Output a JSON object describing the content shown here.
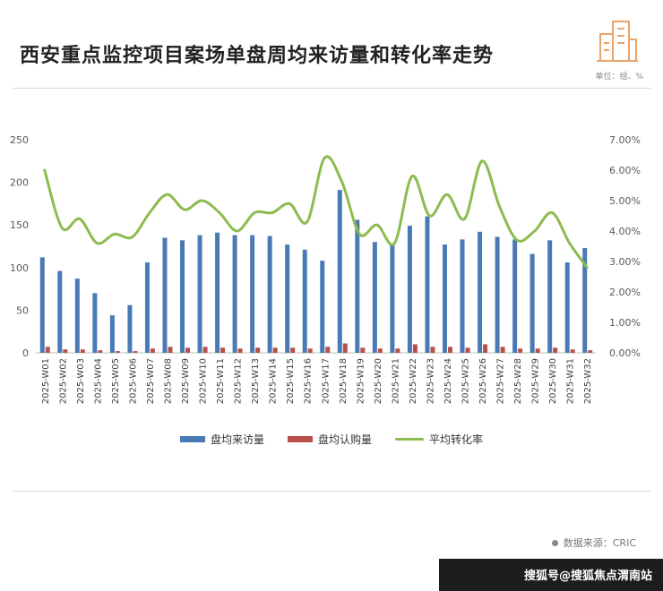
{
  "header": {
    "title": "西安重点监控项目案场单盘周均来访量和转化率走势",
    "unit": "单位：组、%"
  },
  "legend": {
    "visits": "盘均来访量",
    "subscribe": "盘均认购量",
    "rate": "平均转化率"
  },
  "source": "数据来源：CRIC",
  "footer": "搜狐号@搜狐焦点渭南站",
  "colors": {
    "visits": "#4a7ab5",
    "subscribe": "#b8504b",
    "rate": "#8cbc4f"
  },
  "chart_data": {
    "type": "bar",
    "categories": [
      "2025-W01",
      "2025-W02",
      "2025-W03",
      "2025-W04",
      "2025-W05",
      "2025-W06",
      "2025-W07",
      "2025-W08",
      "2025-W09",
      "2025-W10",
      "2025-W11",
      "2025-W12",
      "2025-W13",
      "2025-W14",
      "2025-W15",
      "2025-W16",
      "2025-W17",
      "2025-W18",
      "2025-W19",
      "2025-W20",
      "2025-W21",
      "2025-W22",
      "2025-W23",
      "2025-W24",
      "2025-W25",
      "2025-W26",
      "2025-W27",
      "2025-W28",
      "2025-W29",
      "2025-W30",
      "2025-W31",
      "2025-W32"
    ],
    "series": [
      {
        "name": "盘均来访量",
        "type": "bar",
        "axis": "left",
        "values": [
          112,
          96,
          87,
          70,
          44,
          56,
          106,
          135,
          132,
          138,
          141,
          138,
          138,
          137,
          127,
          121,
          108,
          191,
          156,
          130,
          128,
          149,
          160,
          127,
          133,
          142,
          136,
          133,
          116,
          132,
          106,
          123
        ]
      },
      {
        "name": "盘均认购量",
        "type": "bar",
        "axis": "left",
        "values": [
          7,
          4,
          4,
          3,
          2,
          2,
          5,
          7,
          6,
          7,
          6,
          5,
          6,
          6,
          6,
          5,
          7,
          11,
          6,
          5,
          5,
          10,
          7,
          7,
          6,
          10,
          7,
          5,
          5,
          6,
          4,
          3
        ]
      },
      {
        "name": "平均转化率",
        "type": "line",
        "axis": "right",
        "values": [
          6.0,
          4.1,
          4.4,
          3.6,
          3.9,
          3.8,
          4.6,
          5.2,
          4.7,
          5.0,
          4.6,
          4.0,
          4.6,
          4.6,
          4.9,
          4.3,
          6.4,
          5.6,
          3.9,
          4.2,
          3.6,
          5.8,
          4.5,
          5.2,
          4.4,
          6.3,
          4.8,
          3.7,
          4.0,
          4.6,
          3.6,
          2.8
        ]
      }
    ],
    "y_left": {
      "ticks": [
        "0",
        "50",
        "100",
        "150",
        "200",
        "250"
      ],
      "range": [
        0,
        250
      ]
    },
    "y_right": {
      "ticks": [
        "0.00%",
        "1.00%",
        "2.00%",
        "3.00%",
        "4.00%",
        "5.00%",
        "6.00%",
        "7.00%"
      ],
      "range": [
        0,
        7
      ]
    },
    "grid": false,
    "legend_position": "bottom"
  }
}
